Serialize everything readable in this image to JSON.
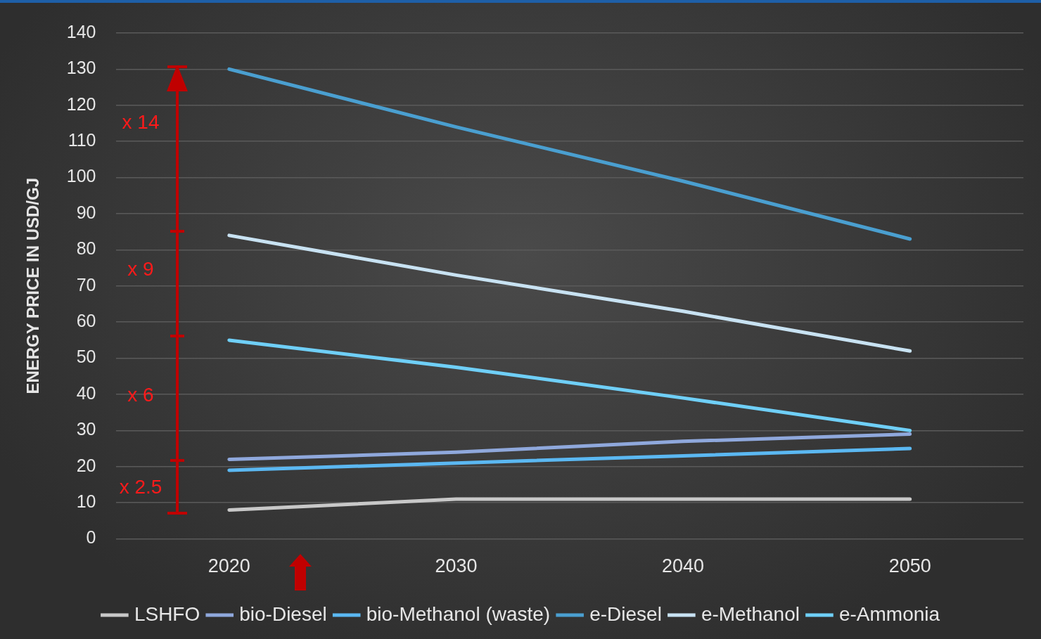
{
  "chart_data": {
    "type": "line",
    "ylabel": "ENERGY PRICE IN USD/GJ",
    "categories": [
      "2020",
      "2030",
      "2040",
      "2050"
    ],
    "series": [
      {
        "name": "LSHFO",
        "color": "#c8c8c8",
        "values": [
          8,
          11,
          11,
          11
        ]
      },
      {
        "name": "bio-Diesel",
        "color": "#8fa8dc",
        "values": [
          22,
          24,
          27,
          29
        ]
      },
      {
        "name": "bio-Methanol (waste)",
        "color": "#5bb8f2",
        "values": [
          19,
          21,
          23,
          25
        ]
      },
      {
        "name": "e-Diesel",
        "color": "#4a9fd0",
        "values": [
          130,
          114,
          99,
          83
        ]
      },
      {
        "name": "e-Methanol",
        "color": "#c8e2f2",
        "values": [
          84,
          73,
          63,
          52
        ]
      },
      {
        "name": "e-Ammonia",
        "color": "#6fcff7",
        "values": [
          55,
          47.5,
          39,
          30
        ]
      }
    ],
    "ylim": [
      0,
      140
    ],
    "yticks": [
      0,
      10,
      20,
      30,
      40,
      50,
      60,
      70,
      80,
      90,
      100,
      110,
      120,
      130,
      140
    ],
    "grid": "y",
    "legend": "bottom",
    "marker": "none",
    "line_style": "solid",
    "annotations": [
      "x 14",
      "x 9",
      "x 6",
      "x 2.5"
    ]
  }
}
